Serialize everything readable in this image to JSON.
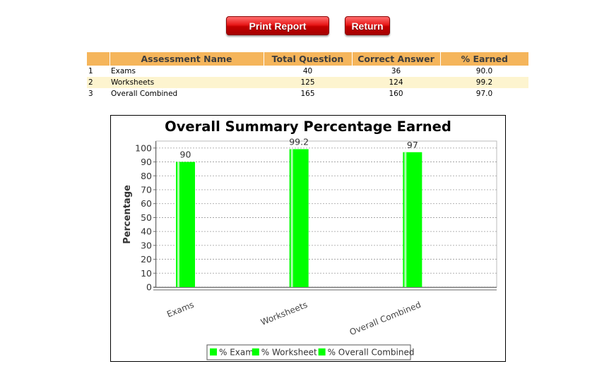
{
  "buttons": {
    "print_label": "Print Report",
    "return_label": "Return"
  },
  "table": {
    "headers": [
      "",
      "Assessment Name",
      "Total Question",
      "Correct Answer",
      "% Earned"
    ],
    "rows": [
      {
        "index": "1",
        "name": "Exams",
        "total": "40",
        "correct": "36",
        "earned": "90.0"
      },
      {
        "index": "2",
        "name": "Worksheets",
        "total": "125",
        "correct": "124",
        "earned": "99.2"
      },
      {
        "index": "3",
        "name": "Overall Combined",
        "total": "165",
        "correct": "160",
        "earned": "97.0"
      }
    ]
  },
  "chart_data": {
    "type": "bar",
    "title": "Overall Summary Percentage Earned",
    "xlabel": "",
    "ylabel": "Percentage",
    "categories": [
      "Exams",
      "Worksheets",
      "Overall Combined"
    ],
    "series": [
      {
        "name": "% Exam",
        "values": [
          90,
          null,
          null
        ]
      },
      {
        "name": "% Worksheet",
        "values": [
          null,
          99.2,
          null
        ]
      },
      {
        "name": "% Overall Combined",
        "values": [
          null,
          null,
          97
        ]
      }
    ],
    "data_labels": [
      "90",
      "99.2",
      "97"
    ],
    "ylim": [
      0,
      105
    ],
    "yticks": [
      0,
      10,
      20,
      30,
      40,
      50,
      60,
      70,
      80,
      90,
      100
    ],
    "grid": true,
    "legend_position": "bottom",
    "bar_color": "#00ff00"
  }
}
